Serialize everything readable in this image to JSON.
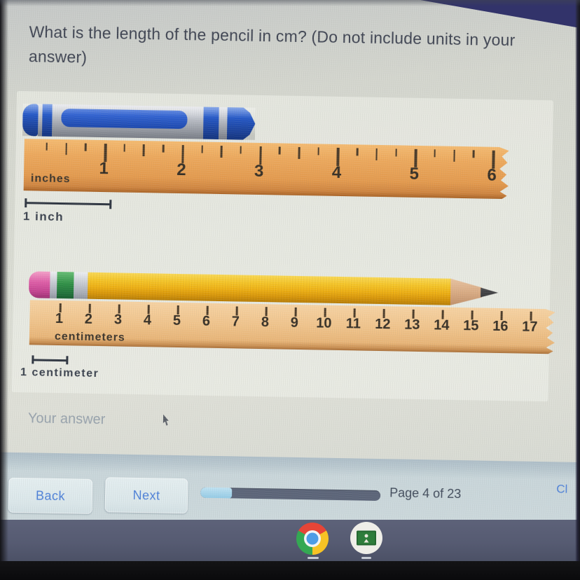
{
  "question": {
    "text": "What is the length of the pencil in cm? (Do not include units in your answer)"
  },
  "figure": {
    "inches_ruler": {
      "unit_label": "inches",
      "numbers": [
        "1",
        "2",
        "3",
        "4",
        "5",
        "6"
      ]
    },
    "inch_legend": {
      "label": "1 inch"
    },
    "cm_ruler": {
      "unit_label": "centimeters",
      "numbers": [
        "1",
        "2",
        "3",
        "4",
        "5",
        "6",
        "7",
        "8",
        "9",
        "10",
        "11",
        "12",
        "13",
        "14",
        "15",
        "16",
        "17"
      ]
    },
    "cm_legend": {
      "label": "1 centimeter"
    },
    "objects": [
      "blue-crayon",
      "yellow-pencil"
    ]
  },
  "answer": {
    "placeholder": "Your answer",
    "value": ""
  },
  "footer": {
    "back": "Back",
    "next": "Next",
    "page": "Page 4 of 23",
    "clear_partial": "Cl",
    "progress_percent": 17.5
  },
  "taskbar": {
    "icons": [
      {
        "name": "chrome-icon"
      },
      {
        "name": "classroom-icon"
      }
    ]
  },
  "colors": {
    "accent_blue": "#4d80d8",
    "question_text": "#3f4452",
    "inches_wood": "#eca85c",
    "cm_wood": "#f0c48c",
    "crayon_blue": "#2457c5",
    "pencil_yellow": "#f0b818",
    "eraser_pink": "#dd5da6",
    "progress_fill": "#94cbe6",
    "progress_track": "#5b6478",
    "shelf": "#565b72"
  }
}
